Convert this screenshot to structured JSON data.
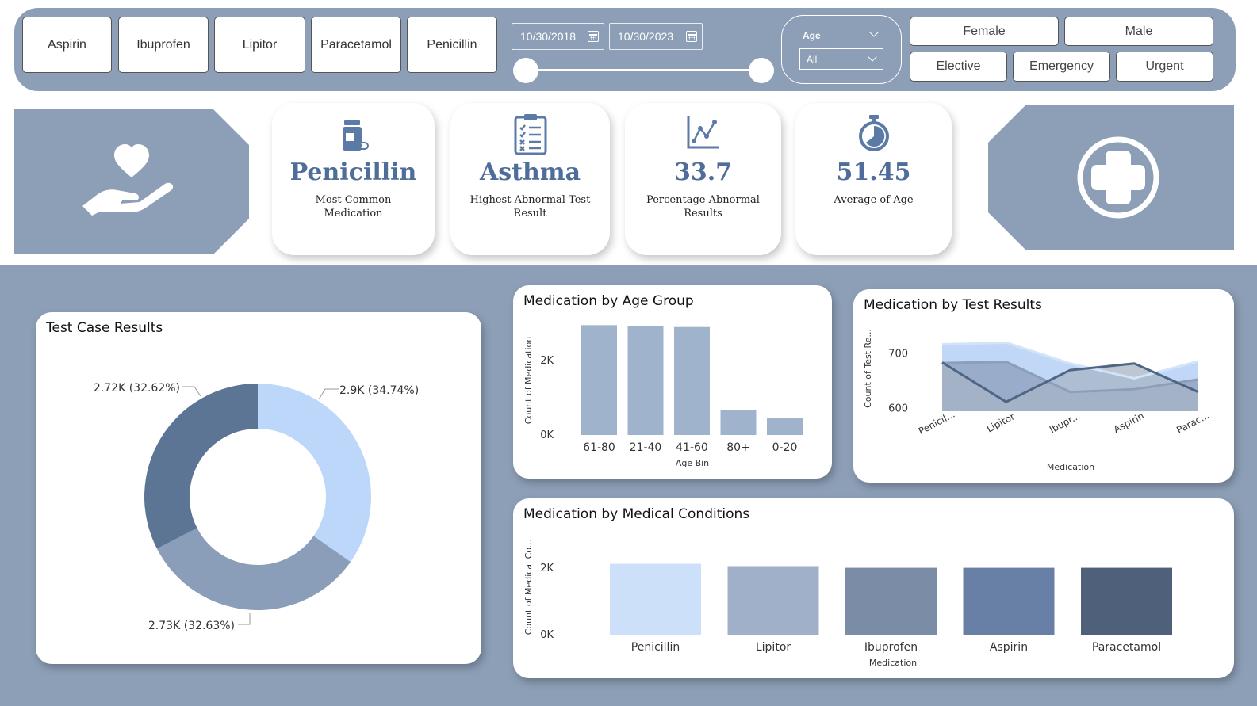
{
  "filters": {
    "medications": [
      "Aspirin",
      "Ibuprofen",
      "Lipitor",
      "Paracetamol",
      "Penicillin"
    ],
    "date_start": "10/30/2018",
    "date_end": "10/30/2023",
    "age": {
      "title": "Age",
      "selected": "All"
    },
    "gender": [
      "Female",
      "Male"
    ],
    "admission_type": [
      "Elective",
      "Emergency",
      "Urgent"
    ]
  },
  "kpis": [
    {
      "value": "Penicillin",
      "label": "Most Common Medication",
      "icon": "medicine-bottle-icon"
    },
    {
      "value": "Asthma",
      "label": "Highest Abnormal Test Result",
      "icon": "clipboard-checklist-icon"
    },
    {
      "value": "33.7",
      "label": "Percentage Abnormal Results",
      "icon": "line-chart-icon"
    },
    {
      "value": "51.45",
      "label": "Average of Age",
      "icon": "stopwatch-icon"
    }
  ],
  "decor": {
    "left_icon": "heart-hand-icon",
    "right_icon": "plus-circle-icon"
  },
  "colors": {
    "panel_bg": "#8d9fb7",
    "accent": "#4e6d99"
  },
  "chart_data": [
    {
      "id": "test_case_results",
      "type": "pie",
      "title": "Test Case Results",
      "slices": [
        {
          "value": 2900,
          "percent": 34.74,
          "label": "2.9K (34.74%)",
          "color": "#bdd7fb"
        },
        {
          "value": 2730,
          "percent": 32.63,
          "label": "2.73K (32.63%)",
          "color": "#8a9db9"
        },
        {
          "value": 2720,
          "percent": 32.62,
          "label": "2.72K (32.62%)",
          "color": "#5c7595"
        }
      ]
    },
    {
      "id": "medication_by_age_group",
      "type": "bar",
      "title": "Medication by Age Group",
      "categories": [
        "61-80",
        "21-40",
        "41-60",
        "80+",
        "0-20"
      ],
      "values": [
        2950,
        2920,
        2900,
        680,
        460
      ],
      "xlabel": "Age Bin",
      "ylabel": "Count of Medication",
      "yticks": [
        {
          "v": 0,
          "label": "0K"
        },
        {
          "v": 2000,
          "label": "2K"
        }
      ],
      "ylim": [
        0,
        3000
      ],
      "color": "#a0b3cd"
    },
    {
      "id": "medication_by_test_results",
      "type": "area",
      "title": "Medication by Test Results",
      "categories": [
        "Penicil...",
        "Lipitor",
        "Ibupr...",
        "Aspirin",
        "Parac..."
      ],
      "series": [
        {
          "values": [
            717,
            720,
            682,
            655,
            686
          ],
          "color": "#b9d3f6"
        },
        {
          "values": [
            683,
            685,
            630,
            635,
            653
          ],
          "color": "#8c9fbb"
        },
        {
          "values": [
            684,
            612,
            670,
            682,
            630
          ],
          "color": "#a7b4c6"
        }
      ],
      "series_lines": [
        "#d3e3f8",
        "#8d9fb7",
        "#4e6584"
      ],
      "xlabel": "Medication",
      "ylabel": "Count of Test Re...",
      "yticks": [
        {
          "v": 600,
          "label": "600"
        },
        {
          "v": 700,
          "label": "700"
        }
      ],
      "ylim": [
        595,
        725
      ]
    },
    {
      "id": "medication_by_medical_conditions",
      "type": "bar",
      "title": "Medication by Medical Conditions",
      "categories": [
        "Penicillin",
        "Lipitor",
        "Ibuprofen",
        "Aspirin",
        "Paracetamol"
      ],
      "values": [
        2130,
        2060,
        2010,
        2010,
        2010
      ],
      "colors": [
        "#cde0fa",
        "#a0b0c8",
        "#7a8ca6",
        "#6880a6",
        "#4f607b"
      ],
      "xlabel": "Medication",
      "ylabel": "Count of Medical Co...",
      "yticks": [
        {
          "v": 0,
          "label": "0K"
        },
        {
          "v": 2000,
          "label": "2K"
        }
      ],
      "ylim": [
        0,
        2500
      ]
    }
  ]
}
